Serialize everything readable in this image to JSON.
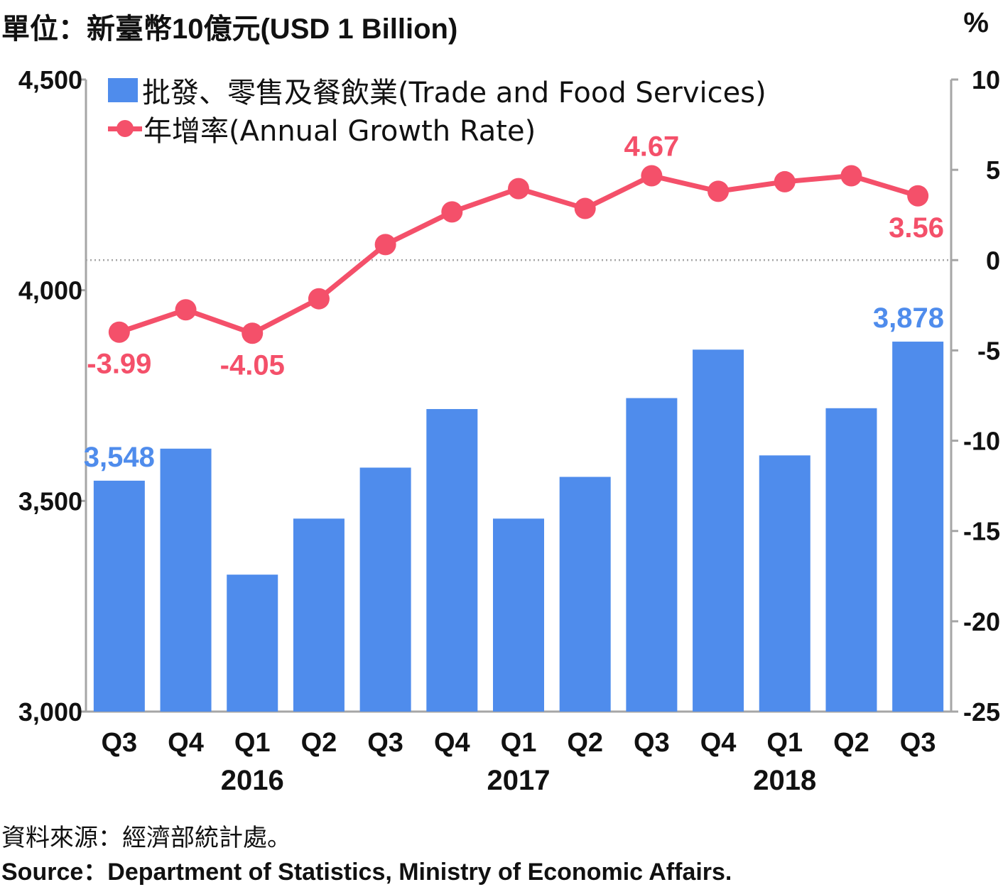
{
  "header": {
    "unit_left": "單位：新臺幣10億元(USD 1 Billion)",
    "unit_right": "%"
  },
  "legend": {
    "bar_label": "批發、零售及餐飲業(Trade and Food Services)",
    "line_label": "年增率(Annual Growth Rate)"
  },
  "footer": {
    "source_zh": "資料來源：經濟部統計處。",
    "source_en": "Source：Department of Statistics, Ministry of Economic Affairs."
  },
  "colors": {
    "bar": "#4f8cec",
    "line": "#f4506a",
    "bar_label": "#4f8cec",
    "line_label": "#f4506a",
    "axis": "#a6a6a6",
    "zero_line": "#a6a6a6"
  },
  "chart_data": {
    "type": "bar+line",
    "categories": [
      "Q3",
      "Q4",
      "Q1",
      "Q2",
      "Q3",
      "Q4",
      "Q1",
      "Q2",
      "Q3",
      "Q4",
      "Q1",
      "Q2",
      "Q3"
    ],
    "year_labels": [
      {
        "label": "2016",
        "start": 0,
        "end": 4
      },
      {
        "label": "2017",
        "start": 4,
        "end": 8
      },
      {
        "label": "2018",
        "start": 8,
        "end": 12
      }
    ],
    "series": [
      {
        "name": "批發、零售及餐飲業(Trade and Food Services)",
        "type": "bar",
        "axis": "left",
        "values": [
          3548,
          3624,
          3325,
          3458,
          3579,
          3718,
          3458,
          3557,
          3744,
          3859,
          3608,
          3720,
          3878
        ]
      },
      {
        "name": "年增率(Annual Growth Rate)",
        "type": "line",
        "axis": "right",
        "values": [
          -3.99,
          -2.75,
          -4.05,
          -2.14,
          0.86,
          2.67,
          3.96,
          2.86,
          4.67,
          3.81,
          4.34,
          4.67,
          3.56
        ]
      }
    ],
    "data_labels": [
      {
        "series": 0,
        "index": 0,
        "text": "3,548",
        "pos": "above"
      },
      {
        "series": 0,
        "index": 12,
        "text": "3,878",
        "pos": "above"
      },
      {
        "series": 1,
        "index": 0,
        "text": "-3.99",
        "pos": "below"
      },
      {
        "series": 1,
        "index": 2,
        "text": "-4.05",
        "pos": "below"
      },
      {
        "series": 1,
        "index": 8,
        "text": "4.67",
        "pos": "above"
      },
      {
        "series": 1,
        "index": 12,
        "text": "3.56",
        "pos": "below"
      }
    ],
    "left_axis": {
      "min": 3000,
      "max": 4500,
      "ticks": [
        3000,
        3500,
        4000,
        4500
      ],
      "tick_labels": [
        "3,000",
        "3,500",
        "4,000",
        "4,500"
      ]
    },
    "right_axis": {
      "min": -25,
      "max": 10,
      "ticks": [
        -25,
        -20,
        -15,
        -10,
        -5,
        0,
        5,
        10
      ],
      "tick_labels": [
        "-25",
        "-20",
        "-15",
        "-10",
        "-5",
        "0",
        "5",
        "10"
      ]
    },
    "zero_line": "dotted",
    "legend_position": "top-left",
    "grid": false
  }
}
